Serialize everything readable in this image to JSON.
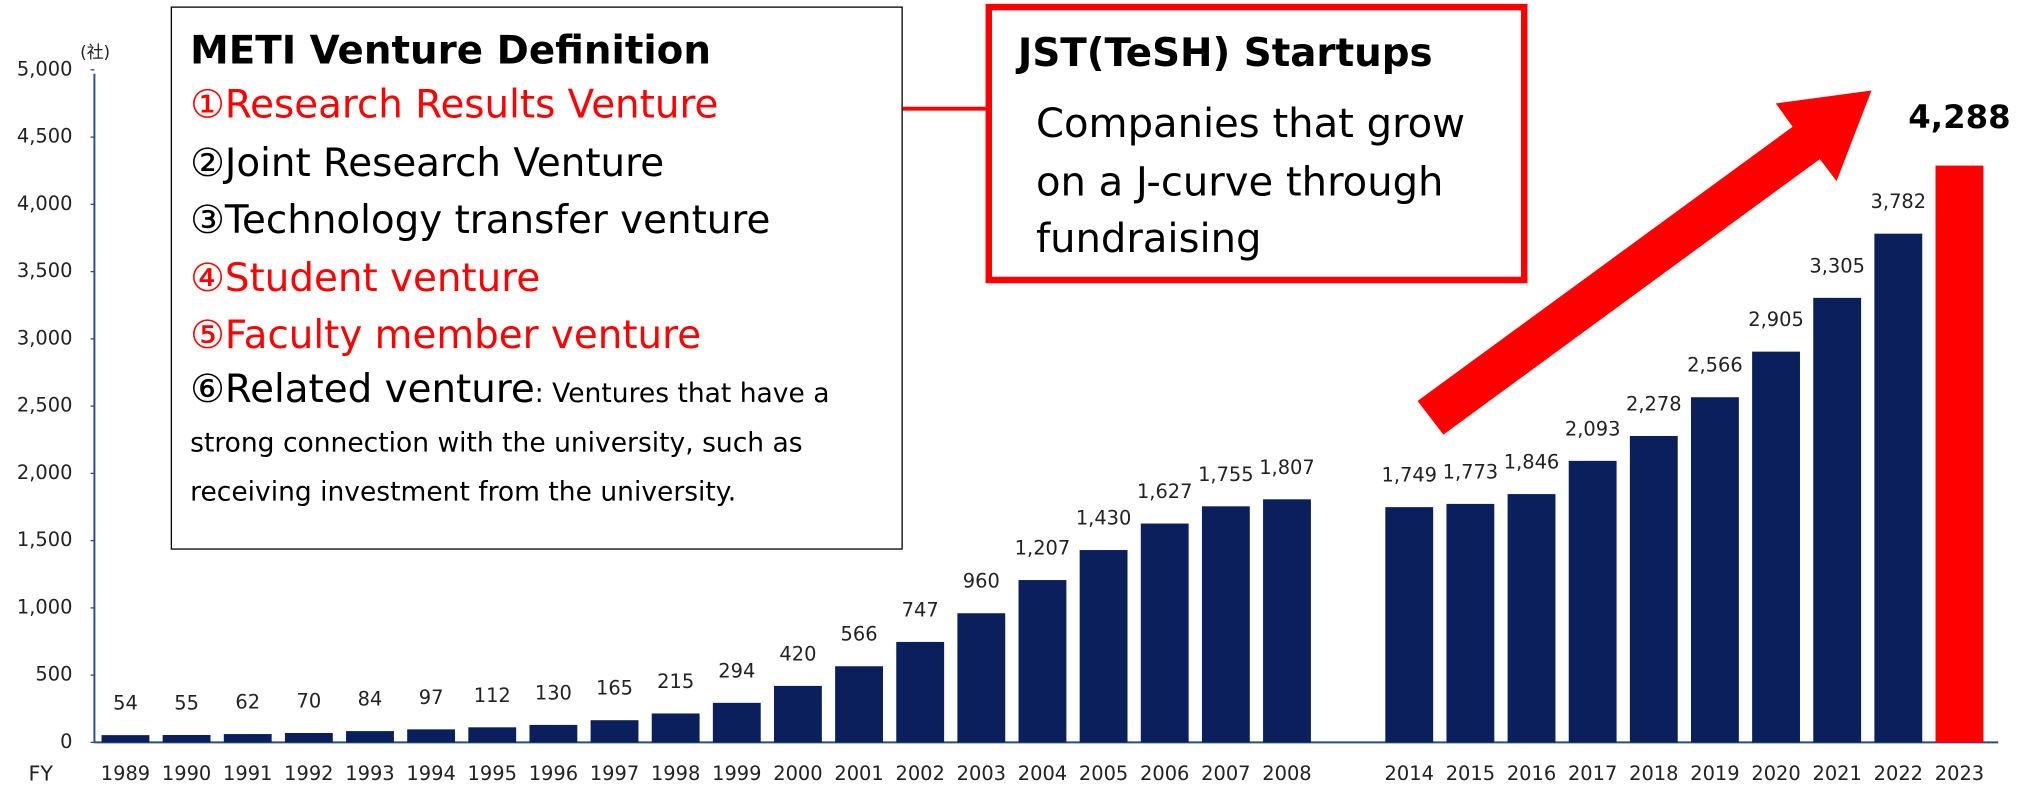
{
  "chart_data": {
    "type": "bar",
    "y_unit": "(社)",
    "x_axis_label": "FY",
    "categories": [
      "1989",
      "1990",
      "1991",
      "1992",
      "1993",
      "1994",
      "1995",
      "1996",
      "1997",
      "1998",
      "1999",
      "2000",
      "2001",
      "2002",
      "2003",
      "2004",
      "2005",
      "2006",
      "2007",
      "2008",
      null,
      "2014",
      "2015",
      "2016",
      "2017",
      "2018",
      "2019",
      "2020",
      "2021",
      "2022",
      "2023"
    ],
    "values": [
      54,
      55,
      62,
      70,
      84,
      97,
      112,
      130,
      165,
      215,
      294,
      420,
      566,
      747,
      960,
      1207,
      1430,
      1627,
      1755,
      1807,
      null,
      1749,
      1773,
      1846,
      2093,
      2278,
      2566,
      2905,
      3305,
      3782,
      4288
    ],
    "value_labels": [
      "54",
      "55",
      "62",
      "70",
      "84",
      "97",
      "112",
      "130",
      "165",
      "215",
      "294",
      "420",
      "566",
      "747",
      "960",
      "1,207",
      "1,430",
      "1,627",
      "1,755",
      "1,807",
      null,
      "1,749",
      "1,773",
      "1,846",
      "2,093",
      "2,278",
      "2,566",
      "2,905",
      "3,305",
      "3,782",
      "4,288"
    ],
    "color": "#0a1f5c",
    "bar_colors": [
      "#0a1f5c",
      "#0a1f5c",
      "#0a1f5c",
      "#0a1f5c",
      "#0a1f5c",
      "#0a1f5c",
      "#0a1f5c",
      "#0a1f5c",
      "#0a1f5c",
      "#0a1f5c",
      "#0a1f5c",
      "#0a1f5c",
      "#0a1f5c",
      "#0a1f5c",
      "#0a1f5c",
      "#0a1f5c",
      "#0a1f5c",
      "#0a1f5c",
      "#0a1f5c",
      "#0a1f5c",
      null,
      "#0a1f5c",
      "#0a1f5c",
      "#0a1f5c",
      "#0a1f5c",
      "#0a1f5c",
      "#0a1f5c",
      "#0a1f5c",
      "#0a1f5c",
      "#0a1f5c",
      "#ff0000"
    ],
    "ylim": [
      0,
      5000
    ],
    "yticks": [
      0,
      500,
      {
        "value": 1000,
        "label": "1,000"
      },
      {
        "value": 1500,
        "label": "1,500"
      },
      {
        "value": 2000,
        "label": "2,000"
      },
      {
        "value": 2500,
        "label": "2,500"
      },
      {
        "value": 3000,
        "label": "3,000"
      },
      {
        "value": 3500,
        "label": "3,500"
      },
      {
        "value": 4000,
        "label": "4,000"
      },
      {
        "value": 4500,
        "label": "4,500"
      },
      {
        "value": 5000,
        "label": "5,000"
      }
    ],
    "grid": false
  },
  "definition_box": {
    "title": "METI Venture Definition",
    "items": [
      {
        "text": "①Research Results Venture",
        "color": "#ff0000"
      },
      {
        "text": "②Joint Research Venture",
        "color": "#000000"
      },
      {
        "text": "③Technology transfer venture",
        "color": "#000000"
      },
      {
        "text": "④Student venture",
        "color": "#ff0000"
      },
      {
        "text": "⑤Faculty member venture",
        "color": "#ff0000"
      }
    ],
    "last_item": {
      "text": "⑥Related venture",
      "note": ": Ventures that have a strong connection with the university, such as receiving investment from the university."
    }
  },
  "startup_box": {
    "title": "JST(TeSH) Startups",
    "body": "Companies that grow on a J-curve through fundraising"
  }
}
